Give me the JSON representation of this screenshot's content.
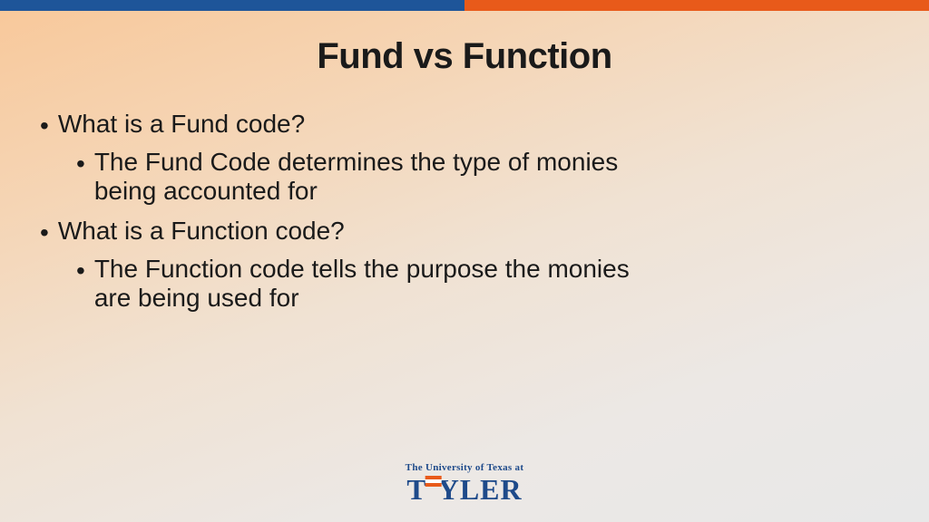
{
  "colors": {
    "topbar_left": "#1e5599",
    "topbar_right": "#e85a1a",
    "text": "#1a1a1a",
    "logo_blue": "#1e4a8a",
    "flag_orange": "#e85a1a",
    "flag_white": "#ffffff",
    "bg_gradient_start": "#f8c89a",
    "bg_gradient_end": "#e8e8e8"
  },
  "title": {
    "text": "Fund vs Function",
    "fontsize": 40
  },
  "content_fontsize": 28,
  "bullets": [
    {
      "level": 1,
      "text": "What is a Fund code?"
    },
    {
      "level": 2,
      "text": "The Fund Code determines the type of monies being accounted for"
    },
    {
      "level": 1,
      "text": "What is a Function code?"
    },
    {
      "level": 2,
      "text": "The Function code tells the purpose the monies are being used for"
    }
  ],
  "logo": {
    "top_text": "The University of Texas at",
    "main_pre": "T",
    "main_post": "YLER"
  }
}
